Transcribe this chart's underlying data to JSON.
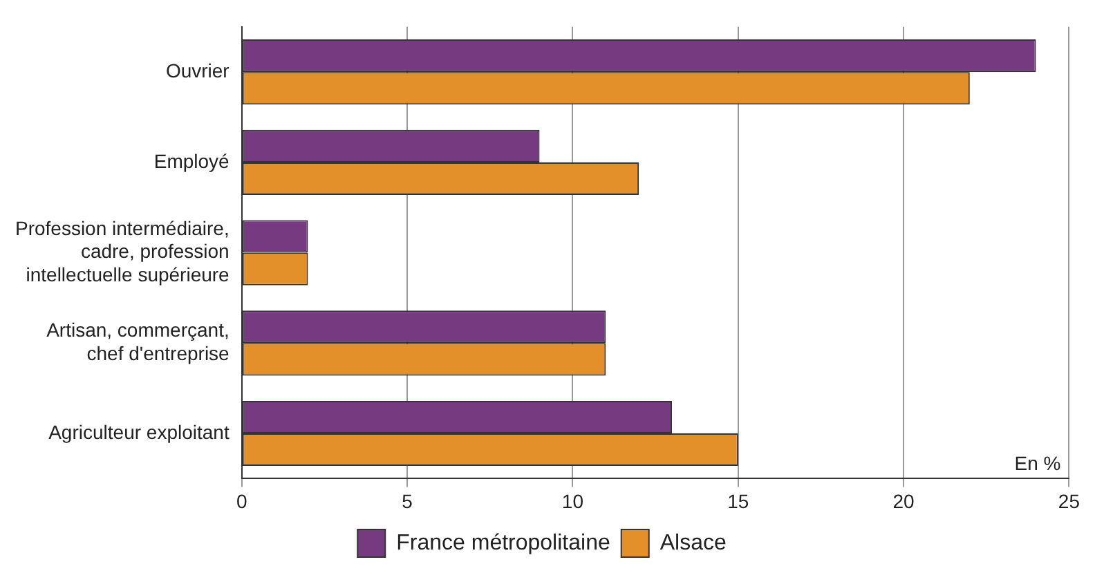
{
  "chart_data": {
    "type": "bar",
    "orientation": "horizontal",
    "categories": [
      "Ouvrier",
      "Employé",
      "Profession intermédiaire, cadre, profession intellectuelle supérieure",
      "Artisan, commerçant, chef d'entreprise",
      "Agriculteur exploitant"
    ],
    "series": [
      {
        "name": "France métropolitaine",
        "color": "#763a80",
        "values": [
          24,
          9,
          2,
          11,
          13
        ]
      },
      {
        "name": "Alsace",
        "color": "#e3902a",
        "values": [
          22,
          12,
          2,
          11,
          15
        ]
      }
    ],
    "xlim": [
      0,
      25
    ],
    "xticks": [
      0,
      5,
      10,
      15,
      20,
      25
    ],
    "grid": "x",
    "legend": "bottom",
    "annotations": [
      "En %"
    ]
  }
}
